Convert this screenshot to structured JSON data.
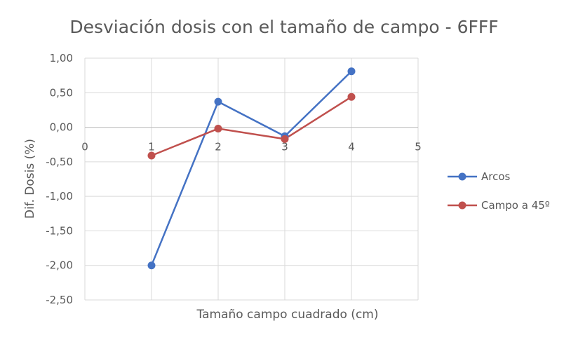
{
  "chart_data": {
    "type": "scatter",
    "title": "Desviación dosis con el tamaño de campo - 6FFF",
    "xlabel": "Tamaño campo cuadrado (cm)",
    "ylabel": "Dif. Dosis (%)",
    "xlim": [
      0,
      5
    ],
    "ylim": [
      -2.5,
      1.0
    ],
    "x_ticks": [
      "0",
      "1",
      "2",
      "3",
      "4",
      "5"
    ],
    "y_ticks": [
      "1,00",
      "0,50",
      "0,00",
      "-0,50",
      "-1,00",
      "-1,50",
      "-2,00",
      "-2,50"
    ],
    "x_tick_values": [
      0,
      1,
      2,
      3,
      4,
      5
    ],
    "y_tick_values": [
      1.0,
      0.5,
      0.0,
      -0.5,
      -1.0,
      -1.5,
      -2.0,
      -2.5
    ],
    "grid": true,
    "legend_position": "right",
    "x": [
      1,
      2,
      3,
      4
    ],
    "series": [
      {
        "name": "Arcos",
        "values": [
          -2.0,
          0.37,
          -0.13,
          0.81
        ],
        "color": "#4472c4"
      },
      {
        "name": "Campo a 45º",
        "values": [
          -0.41,
          -0.02,
          -0.17,
          0.44
        ],
        "color": "#c0504d"
      }
    ]
  }
}
